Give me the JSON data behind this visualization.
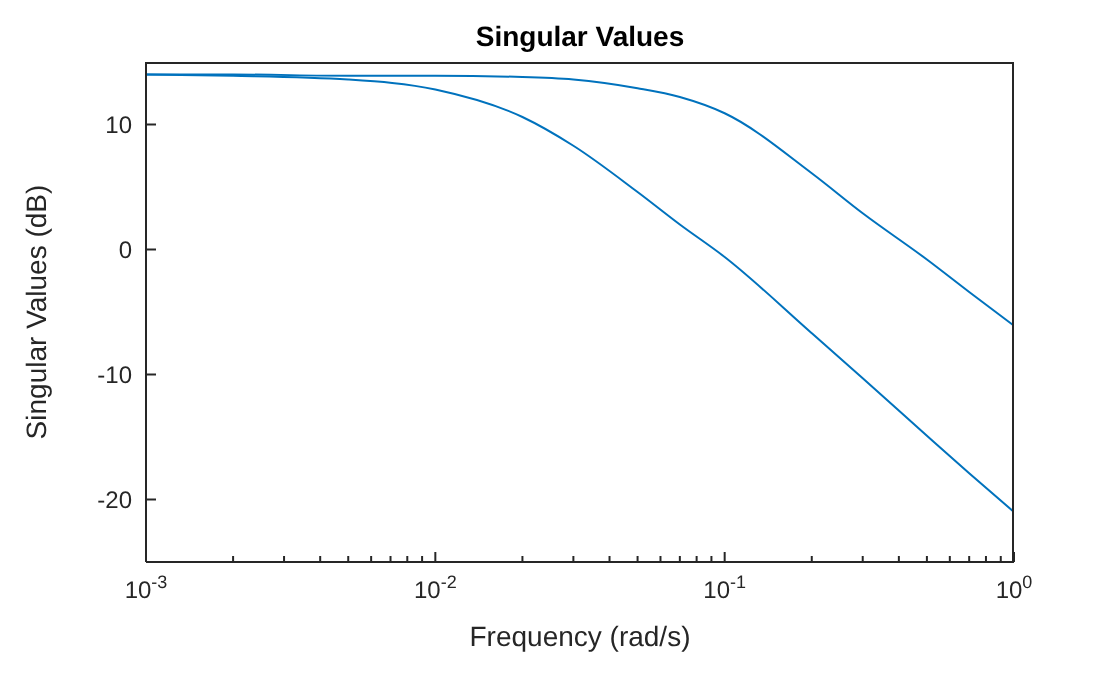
{
  "chart_data": {
    "type": "line",
    "title": "Singular Values",
    "xlabel": "Frequency (rad/s)",
    "ylabel": "Singular Values (dB)",
    "log": "x",
    "x": [
      0.001,
      0.002,
      0.005,
      0.01,
      0.02,
      0.03,
      0.05,
      0.07,
      0.1,
      0.2,
      0.3,
      0.5,
      0.7,
      1
    ],
    "series": [
      {
        "color": "#0072bd",
        "values": [
          14,
          14,
          13.9,
          13.9,
          13.8,
          13.6,
          12.9,
          12.2,
          10.9,
          6.1,
          2.9,
          -0.8,
          -3.4,
          -6.1
        ]
      },
      {
        "color": "#0072bd",
        "values": [
          14,
          13.9,
          13.6,
          12.8,
          10.6,
          8.3,
          4.6,
          2,
          -0.6,
          -6.7,
          -10.3,
          -14.9,
          -17.9,
          -21
        ]
      }
    ],
    "xlim": [
      0.001,
      1
    ],
    "xticks": [
      {
        "value": 0.001,
        "label": "10$^{-3}$"
      },
      {
        "value": 0.002,
        "label": null
      },
      {
        "value": 0.003,
        "label": null
      },
      {
        "value": 0.004,
        "label": null
      },
      {
        "value": 0.005,
        "label": null
      },
      {
        "value": 0.006,
        "label": null
      },
      {
        "value": 0.007,
        "label": null
      },
      {
        "value": 0.008,
        "label": null
      },
      {
        "value": 0.009,
        "label": null
      },
      {
        "value": 0.01,
        "label": "10$^{-2}$"
      },
      {
        "value": 0.02,
        "label": null
      },
      {
        "value": 0.03,
        "label": null
      },
      {
        "value": 0.04,
        "label": null
      },
      {
        "value": 0.05,
        "label": null
      },
      {
        "value": 0.06,
        "label": null
      },
      {
        "value": 0.07,
        "label": null
      },
      {
        "value": 0.08,
        "label": null
      },
      {
        "value": 0.09,
        "label": null
      },
      {
        "value": 0.1,
        "label": "10$^{-1}$"
      },
      {
        "value": 0.2,
        "label": null
      },
      {
        "value": 0.3,
        "label": null
      },
      {
        "value": 0.4,
        "label": null
      },
      {
        "value": 0.5,
        "label": null
      },
      {
        "value": 0.6,
        "label": null
      },
      {
        "value": 0.7,
        "label": null
      },
      {
        "value": 0.8,
        "label": null
      },
      {
        "value": 0.9,
        "label": null
      },
      {
        "value": 1,
        "label": "10$^{0}$"
      }
    ],
    "ylim": [
      -25,
      15
    ],
    "yticks": [
      -20,
      -10,
      0,
      10
    ],
    "marker": "none",
    "line_style": "solid"
  }
}
